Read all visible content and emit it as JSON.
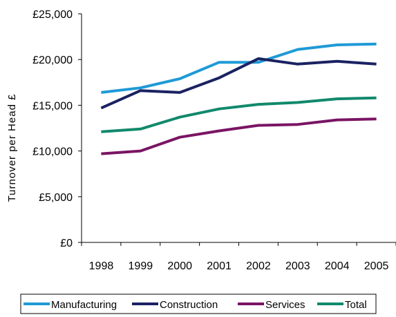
{
  "chart_data": {
    "type": "line",
    "title": "",
    "xlabel": "",
    "ylabel": "Turnover per Head £",
    "categories": [
      "1998",
      "1999",
      "2000",
      "2001",
      "2002",
      "2003",
      "2004",
      "2005"
    ],
    "ylim": [
      0,
      25000
    ],
    "y_ticks": [
      0,
      5000,
      10000,
      15000,
      20000,
      25000
    ],
    "y_tick_labels": [
      "£0",
      "£5,000",
      "£10,000",
      "£15,000",
      "£20,000",
      "£25,000"
    ],
    "grid": false,
    "legend_position": "bottom",
    "series": [
      {
        "name": "Manufacturing",
        "color": "#1f9ad6",
        "values": [
          16400,
          16900,
          17900,
          19700,
          19700,
          21100,
          21600,
          21700
        ]
      },
      {
        "name": "Construction",
        "color": "#1b2262",
        "values": [
          14700,
          16600,
          16400,
          18000,
          20100,
          19500,
          19800,
          19500
        ]
      },
      {
        "name": "Services",
        "color": "#7a1464",
        "values": [
          9700,
          10000,
          11500,
          12200,
          12800,
          12900,
          13400,
          13500
        ]
      },
      {
        "name": "Total",
        "color": "#11896c",
        "values": [
          12100,
          12400,
          13700,
          14600,
          15100,
          15300,
          15700,
          15800
        ]
      }
    ]
  }
}
